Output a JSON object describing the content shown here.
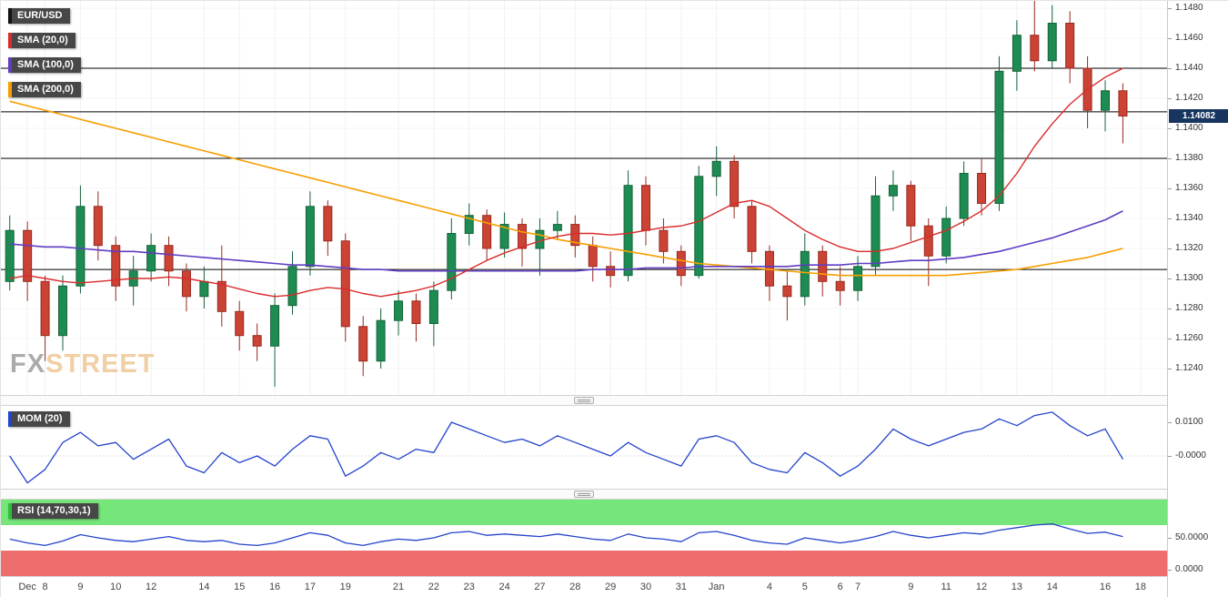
{
  "watermark": {
    "fx": "FX",
    "street": "STREET"
  },
  "chart_data": {
    "type": "candlestick",
    "symbol": "EUR/USD",
    "colors": {
      "up": "#1e8c52",
      "up_border": "#146239",
      "down": "#cb4335",
      "down_border": "#97291e",
      "sma20": "#d92b2b",
      "sma100": "#5f3dc4",
      "sma200": "#f59f00",
      "mom": "#2343cc",
      "rsi": "#2343cc",
      "rsi_upper_band": "#76e57a",
      "rsi_lower_band": "#ee6e6e",
      "price_badge_bg": "#17355e",
      "support_resistance": "#000000"
    },
    "legend": [
      {
        "label": "EUR/USD",
        "stripe": "#111111"
      },
      {
        "label": "SMA (20,0)",
        "stripe": "#d92b2b"
      },
      {
        "label": "SMA (100,0)",
        "stripe": "#5f3dc4"
      },
      {
        "label": "SMA (200,0)",
        "stripe": "#f59f00"
      }
    ],
    "x_axis": {
      "labels": [
        {
          "label": "Dec",
          "i": 1
        },
        {
          "label": "8",
          "i": 2
        },
        {
          "label": "9",
          "i": 4
        },
        {
          "label": "10",
          "i": 6
        },
        {
          "label": "12",
          "i": 8
        },
        {
          "label": "14",
          "i": 11
        },
        {
          "label": "15",
          "i": 13
        },
        {
          "label": "16",
          "i": 15
        },
        {
          "label": "17",
          "i": 17
        },
        {
          "label": "19",
          "i": 19
        },
        {
          "label": "21",
          "i": 22
        },
        {
          "label": "22",
          "i": 24
        },
        {
          "label": "23",
          "i": 26
        },
        {
          "label": "24",
          "i": 28
        },
        {
          "label": "27",
          "i": 30
        },
        {
          "label": "28",
          "i": 32
        },
        {
          "label": "29",
          "i": 34
        },
        {
          "label": "30",
          "i": 36
        },
        {
          "label": "31",
          "i": 38
        },
        {
          "label": "Jan",
          "i": 40
        },
        {
          "label": "4",
          "i": 43
        },
        {
          "label": "5",
          "i": 45
        },
        {
          "label": "6",
          "i": 47
        },
        {
          "label": "7",
          "i": 48
        },
        {
          "label": "9",
          "i": 51
        },
        {
          "label": "11",
          "i": 53
        },
        {
          "label": "12",
          "i": 55
        },
        {
          "label": "13",
          "i": 57
        },
        {
          "label": "14",
          "i": 59
        },
        {
          "label": "16",
          "i": 62
        },
        {
          "label": "18",
          "i": 64
        }
      ]
    },
    "main": {
      "ylim": [
        1.1222,
        1.1485
      ],
      "y_ticks": [
        "1.1480",
        "1.1460",
        "1.1440",
        "1.1420",
        "1.1400",
        "1.1380",
        "1.1360",
        "1.1340",
        "1.1320",
        "1.1300",
        "1.1280",
        "1.1260",
        "1.1240"
      ],
      "hlines": [
        1.144,
        1.1411,
        1.138,
        1.1306
      ],
      "current_price": "1.14082",
      "candles": [
        [
          1.1298,
          1.1342,
          1.1292,
          1.1332
        ],
        [
          1.1332,
          1.1338,
          1.1285,
          1.1298
        ],
        [
          1.1298,
          1.1302,
          1.1245,
          1.1262
        ],
        [
          1.1262,
          1.1302,
          1.1252,
          1.1295
        ],
        [
          1.1295,
          1.1362,
          1.129,
          1.1348
        ],
        [
          1.1348,
          1.1358,
          1.1312,
          1.1322
        ],
        [
          1.1322,
          1.1328,
          1.1285,
          1.1295
        ],
        [
          1.1295,
          1.1315,
          1.1282,
          1.1305
        ],
        [
          1.1305,
          1.133,
          1.1298,
          1.1322
        ],
        [
          1.1322,
          1.1328,
          1.1295,
          1.1305
        ],
        [
          1.1305,
          1.131,
          1.1278,
          1.1288
        ],
        [
          1.1288,
          1.1308,
          1.128,
          1.1298
        ],
        [
          1.1298,
          1.1322,
          1.1268,
          1.1278
        ],
        [
          1.1278,
          1.1285,
          1.1252,
          1.1262
        ],
        [
          1.1262,
          1.127,
          1.1245,
          1.1255
        ],
        [
          1.1255,
          1.129,
          1.1228,
          1.1282
        ],
        [
          1.1282,
          1.1318,
          1.1276,
          1.1308
        ],
        [
          1.1308,
          1.1358,
          1.1302,
          1.1348
        ],
        [
          1.1348,
          1.1352,
          1.1315,
          1.1325
        ],
        [
          1.1325,
          1.133,
          1.1258,
          1.1268
        ],
        [
          1.1268,
          1.1275,
          1.1235,
          1.1245
        ],
        [
          1.1245,
          1.128,
          1.124,
          1.1272
        ],
        [
          1.1272,
          1.1292,
          1.1262,
          1.1285
        ],
        [
          1.1285,
          1.129,
          1.1258,
          1.127
        ],
        [
          1.127,
          1.1298,
          1.1255,
          1.1292
        ],
        [
          1.1292,
          1.134,
          1.1286,
          1.133
        ],
        [
          1.133,
          1.135,
          1.1322,
          1.1342
        ],
        [
          1.1342,
          1.1346,
          1.1312,
          1.132
        ],
        [
          1.132,
          1.1344,
          1.1314,
          1.1336
        ],
        [
          1.1336,
          1.134,
          1.1308,
          1.132
        ],
        [
          1.132,
          1.134,
          1.1302,
          1.1332
        ],
        [
          1.1332,
          1.1345,
          1.1326,
          1.1336
        ],
        [
          1.1336,
          1.1342,
          1.1314,
          1.1322
        ],
        [
          1.1322,
          1.1328,
          1.1298,
          1.1308
        ],
        [
          1.1308,
          1.1318,
          1.1294,
          1.1302
        ],
        [
          1.1302,
          1.1372,
          1.1298,
          1.1362
        ],
        [
          1.1362,
          1.1368,
          1.1322,
          1.1332
        ],
        [
          1.1332,
          1.134,
          1.131,
          1.1318
        ],
        [
          1.1318,
          1.1322,
          1.1295,
          1.1302
        ],
        [
          1.1302,
          1.1375,
          1.13,
          1.1368
        ],
        [
          1.1368,
          1.1388,
          1.1355,
          1.1378
        ],
        [
          1.1378,
          1.1382,
          1.134,
          1.1348
        ],
        [
          1.1348,
          1.1352,
          1.131,
          1.1318
        ],
        [
          1.1318,
          1.1322,
          1.1285,
          1.1295
        ],
        [
          1.1295,
          1.1305,
          1.1272,
          1.1288
        ],
        [
          1.1288,
          1.133,
          1.1282,
          1.1318
        ],
        [
          1.1318,
          1.1322,
          1.1288,
          1.1298
        ],
        [
          1.1298,
          1.1308,
          1.1282,
          1.1292
        ],
        [
          1.1292,
          1.1315,
          1.1285,
          1.1308
        ],
        [
          1.1308,
          1.1368,
          1.1302,
          1.1355
        ],
        [
          1.1355,
          1.1372,
          1.1345,
          1.1362
        ],
        [
          1.1362,
          1.1365,
          1.1325,
          1.1335
        ],
        [
          1.1335,
          1.134,
          1.1295,
          1.1315
        ],
        [
          1.1315,
          1.1348,
          1.131,
          1.134
        ],
        [
          1.134,
          1.1378,
          1.1335,
          1.137
        ],
        [
          1.137,
          1.138,
          1.1342,
          1.135
        ],
        [
          1.135,
          1.1448,
          1.1345,
          1.1438
        ],
        [
          1.1438,
          1.1472,
          1.1425,
          1.1462
        ],
        [
          1.1462,
          1.1485,
          1.1438,
          1.1445
        ],
        [
          1.1445,
          1.1482,
          1.144,
          1.147
        ],
        [
          1.147,
          1.1478,
          1.143,
          1.144
        ],
        [
          1.144,
          1.1448,
          1.14,
          1.1412
        ],
        [
          1.1412,
          1.1432,
          1.1398,
          1.1425
        ],
        [
          1.1425,
          1.143,
          1.139,
          1.14082
        ]
      ],
      "sma20": [
        1.13,
        1.1302,
        1.13,
        1.1298,
        1.1297,
        1.1298,
        1.1299,
        1.13,
        1.13,
        1.1301,
        1.13,
        1.1298,
        1.1296,
        1.1293,
        1.129,
        1.1288,
        1.1289,
        1.1292,
        1.1294,
        1.1293,
        1.129,
        1.1288,
        1.129,
        1.1292,
        1.1295,
        1.13,
        1.1306,
        1.1312,
        1.1317,
        1.1321,
        1.1325,
        1.1328,
        1.133,
        1.133,
        1.1329,
        1.133,
        1.1332,
        1.1334,
        1.1335,
        1.1338,
        1.1344,
        1.135,
        1.1352,
        1.1348,
        1.134,
        1.1332,
        1.1326,
        1.1321,
        1.1318,
        1.1318,
        1.132,
        1.1324,
        1.1328,
        1.1332,
        1.1338,
        1.1345,
        1.1355,
        1.137,
        1.1388,
        1.1403,
        1.1416,
        1.1426,
        1.1434,
        1.144
      ],
      "sma100": [
        1.1323,
        1.1322,
        1.1321,
        1.1321,
        1.132,
        1.1319,
        1.1318,
        1.1318,
        1.1317,
        1.1316,
        1.1315,
        1.1314,
        1.1313,
        1.1312,
        1.1311,
        1.131,
        1.1309,
        1.1309,
        1.1308,
        1.1307,
        1.1306,
        1.1306,
        1.1305,
        1.1305,
        1.1305,
        1.1305,
        1.1305,
        1.1305,
        1.1305,
        1.1305,
        1.1305,
        1.1305,
        1.1305,
        1.1306,
        1.1306,
        1.1306,
        1.1307,
        1.1307,
        1.1307,
        1.1308,
        1.1308,
        1.1308,
        1.1308,
        1.1308,
        1.1308,
        1.1309,
        1.1309,
        1.1309,
        1.131,
        1.131,
        1.1311,
        1.1312,
        1.1312,
        1.1313,
        1.1314,
        1.1316,
        1.1318,
        1.1321,
        1.1324,
        1.1327,
        1.1331,
        1.1335,
        1.1339,
        1.1345
      ],
      "sma200": [
        1.1418,
        1.1415,
        1.1412,
        1.1409,
        1.1406,
        1.1403,
        1.14,
        1.1397,
        1.1394,
        1.1391,
        1.1388,
        1.1385,
        1.1382,
        1.1379,
        1.1376,
        1.1373,
        1.137,
        1.1367,
        1.1364,
        1.1361,
        1.1358,
        1.1355,
        1.1352,
        1.1349,
        1.1346,
        1.1343,
        1.134,
        1.1337,
        1.1334,
        1.1331,
        1.1329,
        1.1326,
        1.1324,
        1.1322,
        1.132,
        1.1318,
        1.1316,
        1.1314,
        1.1312,
        1.131,
        1.1309,
        1.1308,
        1.1307,
        1.1306,
        1.1305,
        1.1304,
        1.1303,
        1.1302,
        1.1302,
        1.1302,
        1.1302,
        1.1302,
        1.1302,
        1.1302,
        1.1303,
        1.1304,
        1.1305,
        1.1306,
        1.1308,
        1.131,
        1.1312,
        1.1314,
        1.1317,
        1.132
      ]
    },
    "momentum": {
      "label": "MOM (20)",
      "stripe": "#2343cc",
      "y_ticks": [
        {
          "label": "0.0100",
          "value": 0.01
        },
        {
          "label": "-0.0000",
          "value": 0
        }
      ],
      "values": [
        0.0,
        -0.008,
        -0.004,
        0.004,
        0.007,
        0.003,
        0.004,
        -0.001,
        0.002,
        0.005,
        -0.003,
        -0.005,
        0.001,
        -0.002,
        0.0,
        -0.003,
        0.002,
        0.006,
        0.005,
        -0.006,
        -0.003,
        0.001,
        -0.001,
        0.002,
        0.001,
        0.01,
        0.008,
        0.006,
        0.004,
        0.005,
        0.003,
        0.006,
        0.004,
        0.002,
        0.0,
        0.004,
        0.001,
        -0.001,
        -0.003,
        0.005,
        0.006,
        0.004,
        -0.002,
        -0.004,
        -0.005,
        0.001,
        -0.002,
        -0.006,
        -0.003,
        0.002,
        0.008,
        0.005,
        0.003,
        0.005,
        0.007,
        0.008,
        0.011,
        0.009,
        0.012,
        0.013,
        0.009,
        0.006,
        0.008,
        -0.001
      ]
    },
    "rsi": {
      "label": "RSI (14,70,30,1)",
      "stripe": "#2fbe3a",
      "overbought": 70,
      "oversold": 30,
      "y_ticks": [
        {
          "label": "50.0000",
          "value": 50
        },
        {
          "label": "0.0000",
          "value": 0
        }
      ],
      "values": [
        48,
        42,
        38,
        45,
        55,
        50,
        46,
        44,
        48,
        52,
        46,
        44,
        46,
        40,
        38,
        42,
        50,
        58,
        54,
        42,
        38,
        44,
        48,
        46,
        50,
        58,
        60,
        54,
        56,
        54,
        52,
        56,
        52,
        48,
        46,
        56,
        50,
        48,
        44,
        58,
        60,
        54,
        46,
        42,
        40,
        50,
        46,
        42,
        46,
        52,
        60,
        54,
        50,
        54,
        58,
        56,
        62,
        66,
        70,
        72,
        64,
        57,
        59,
        52
      ]
    }
  }
}
